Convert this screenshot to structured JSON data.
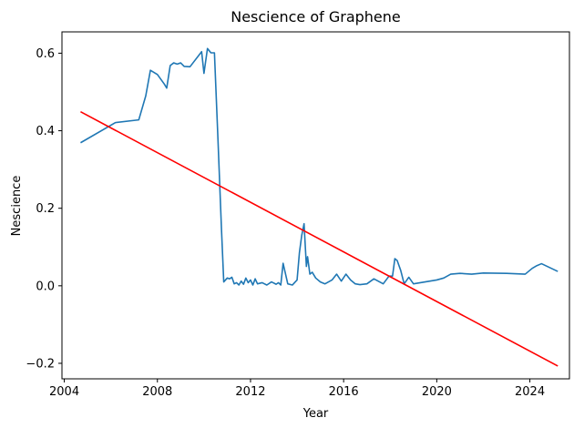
{
  "chart_data": {
    "type": "line",
    "title": "Nescience of Graphene",
    "xlabel": "Year",
    "ylabel": "Nescience",
    "xlim": [
      2003.9,
      2025.7
    ],
    "ylim": [
      -0.24,
      0.655
    ],
    "x_ticks": [
      {
        "value": 2004,
        "label": "2004"
      },
      {
        "value": 2008,
        "label": "2008"
      },
      {
        "value": 2012,
        "label": "2012"
      },
      {
        "value": 2016,
        "label": "2016"
      },
      {
        "value": 2020,
        "label": "2020"
      },
      {
        "value": 2024,
        "label": "2024"
      }
    ],
    "y_ticks": [
      {
        "value": -0.2,
        "label": "−0.2"
      },
      {
        "value": 0.0,
        "label": "0.0"
      },
      {
        "value": 0.2,
        "label": "0.2"
      },
      {
        "value": 0.4,
        "label": "0.4"
      },
      {
        "value": 0.6,
        "label": "0.6"
      }
    ],
    "grid": false,
    "series": [
      {
        "color": "#1f77b4",
        "x": [
          2004.7,
          2006.2,
          2007.2,
          2007.5,
          2007.7,
          2008.0,
          2008.3,
          2008.4,
          2008.55,
          2008.7,
          2008.85,
          2009.0,
          2009.15,
          2009.4,
          2009.9,
          2010.0,
          2010.15,
          2010.3,
          2010.45,
          2010.6,
          2010.75,
          2010.85,
          2011.0,
          2011.1,
          2011.2,
          2011.3,
          2011.4,
          2011.5,
          2011.6,
          2011.7,
          2011.8,
          2011.9,
          2012.0,
          2012.1,
          2012.2,
          2012.3,
          2012.5,
          2012.7,
          2012.9,
          2013.1,
          2013.2,
          2013.3,
          2013.4,
          2013.6,
          2013.8,
          2014.0,
          2014.1,
          2014.2,
          2014.3,
          2014.4,
          2014.45,
          2014.55,
          2014.65,
          2014.8,
          2015.0,
          2015.2,
          2015.5,
          2015.7,
          2015.9,
          2016.1,
          2016.3,
          2016.5,
          2016.7,
          2017.0,
          2017.3,
          2017.7,
          2017.95,
          2018.1,
          2018.2,
          2018.3,
          2018.45,
          2018.6,
          2018.8,
          2019.0,
          2019.5,
          2020.0,
          2020.3,
          2020.6,
          2021.0,
          2021.5,
          2022.0,
          2023.0,
          2023.8,
          2024.1,
          2024.3,
          2024.5,
          2025.2
        ],
        "y": [
          0.369,
          0.421,
          0.428,
          0.49,
          0.556,
          0.545,
          0.52,
          0.51,
          0.568,
          0.575,
          0.572,
          0.575,
          0.566,
          0.565,
          0.604,
          0.548,
          0.612,
          0.601,
          0.601,
          0.38,
          0.15,
          0.01,
          0.02,
          0.018,
          0.022,
          0.005,
          0.008,
          0.002,
          0.012,
          0.004,
          0.02,
          0.008,
          0.015,
          0.002,
          0.018,
          0.005,
          0.008,
          0.002,
          0.01,
          0.004,
          0.008,
          0.002,
          0.058,
          0.005,
          0.002,
          0.015,
          0.085,
          0.13,
          0.16,
          0.05,
          0.075,
          0.03,
          0.035,
          0.02,
          0.01,
          0.005,
          0.015,
          0.03,
          0.012,
          0.03,
          0.015,
          0.005,
          0.003,
          0.005,
          0.018,
          0.005,
          0.025,
          0.025,
          0.07,
          0.065,
          0.04,
          0.005,
          0.022,
          0.005,
          0.01,
          0.015,
          0.02,
          0.03,
          0.032,
          0.03,
          0.033,
          0.032,
          0.03,
          0.045,
          0.052,
          0.057,
          0.037
        ]
      },
      {
        "color": "#ff0000",
        "x": [
          2004.7,
          2025.2
        ],
        "y": [
          0.449,
          -0.207
        ]
      }
    ]
  }
}
